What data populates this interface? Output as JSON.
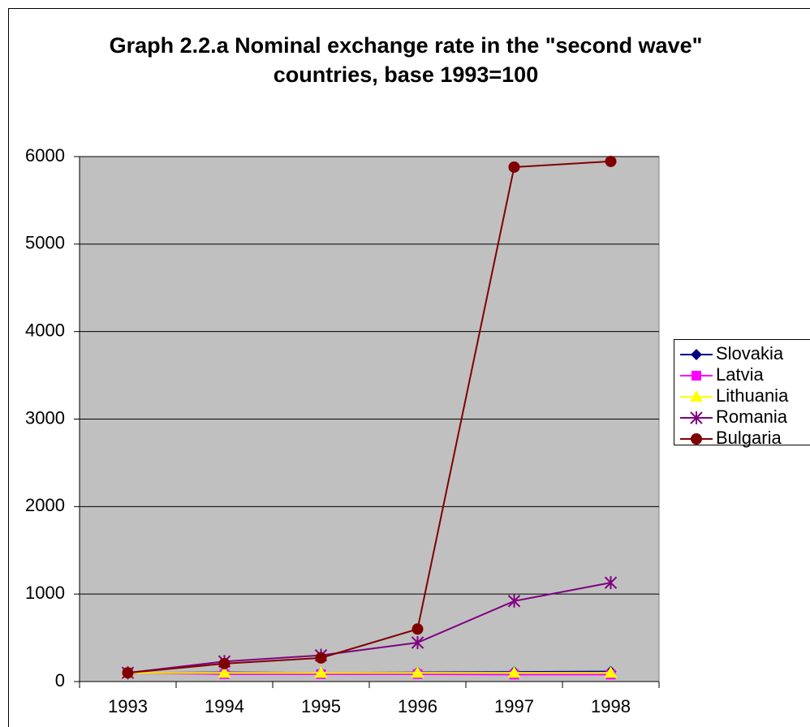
{
  "chart_data": {
    "type": "line",
    "title": "Graph 2.2.a Nominal exchange rate in the \"second wave\" countries, base 1993=100",
    "categories": [
      "1993",
      "1994",
      "1995",
      "1996",
      "1997",
      "1998"
    ],
    "series": [
      {
        "name": "Slovakia",
        "color": "#000080",
        "marker": "diamond",
        "values": [
          100,
          105,
          100,
          105,
          110,
          115
        ]
      },
      {
        "name": "Latvia",
        "color": "#ff00ff",
        "marker": "square",
        "values": [
          100,
          85,
          85,
          85,
          80,
          80
        ]
      },
      {
        "name": "Lithuania",
        "color": "#ffff00",
        "marker": "triangle",
        "values": [
          100,
          100,
          100,
          100,
          100,
          100
        ]
      },
      {
        "name": "Romania",
        "color": "#800080",
        "marker": "star",
        "values": [
          100,
          230,
          300,
          445,
          920,
          1130
        ]
      },
      {
        "name": "Bulgaria",
        "color": "#800000",
        "marker": "circle",
        "values": [
          100,
          205,
          270,
          600,
          5880,
          5945
        ]
      }
    ],
    "ylim": [
      0,
      6000
    ],
    "yticks": [
      0,
      1000,
      2000,
      3000,
      4000,
      5000,
      6000
    ],
    "grid": true,
    "legend": "right"
  }
}
